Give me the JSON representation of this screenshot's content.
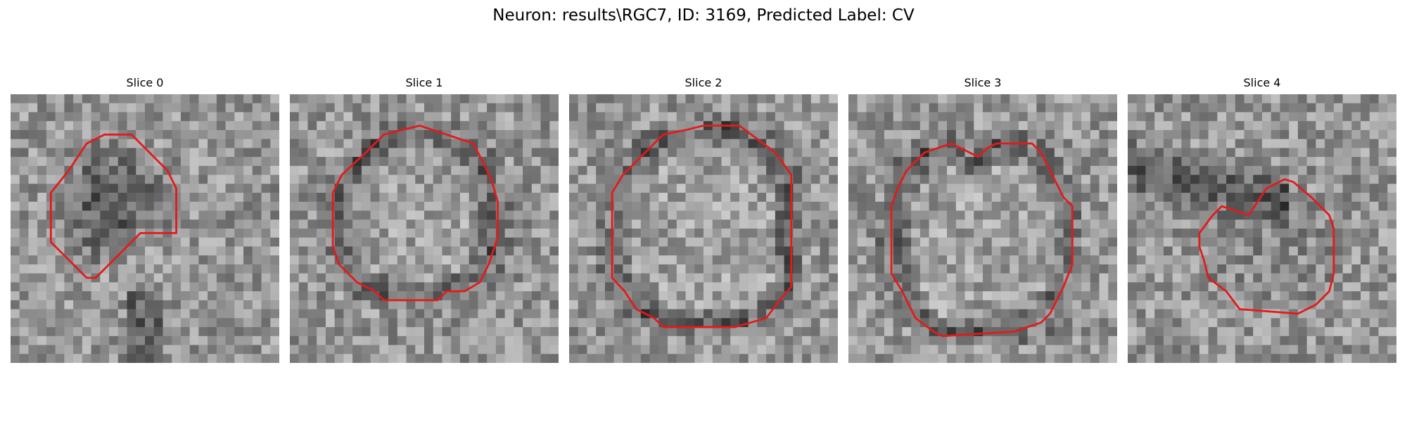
{
  "figure": {
    "title": "Neuron: results\\RGC7, ID: 3169, Predicted Label: CV"
  },
  "panels": [
    {
      "title": "Slice 0",
      "seed": 11,
      "dark": "blob",
      "contour": [
        [
          2,
          2
        ],
        [
          2,
          1
        ],
        [
          1,
          2
        ],
        [
          2,
          3
        ]
      ]
    },
    {
      "title": "Slice 1",
      "seed": 23,
      "dark": "ring"
    },
    {
      "title": "Slice 2",
      "seed": 37,
      "dark": "ring"
    },
    {
      "title": "Slice 3",
      "seed": 51,
      "dark": "ring"
    },
    {
      "title": "Slice 4",
      "seed": 67,
      "dark": "band"
    }
  ],
  "contour_color": "#e31a1c",
  "colormap": "gray"
}
